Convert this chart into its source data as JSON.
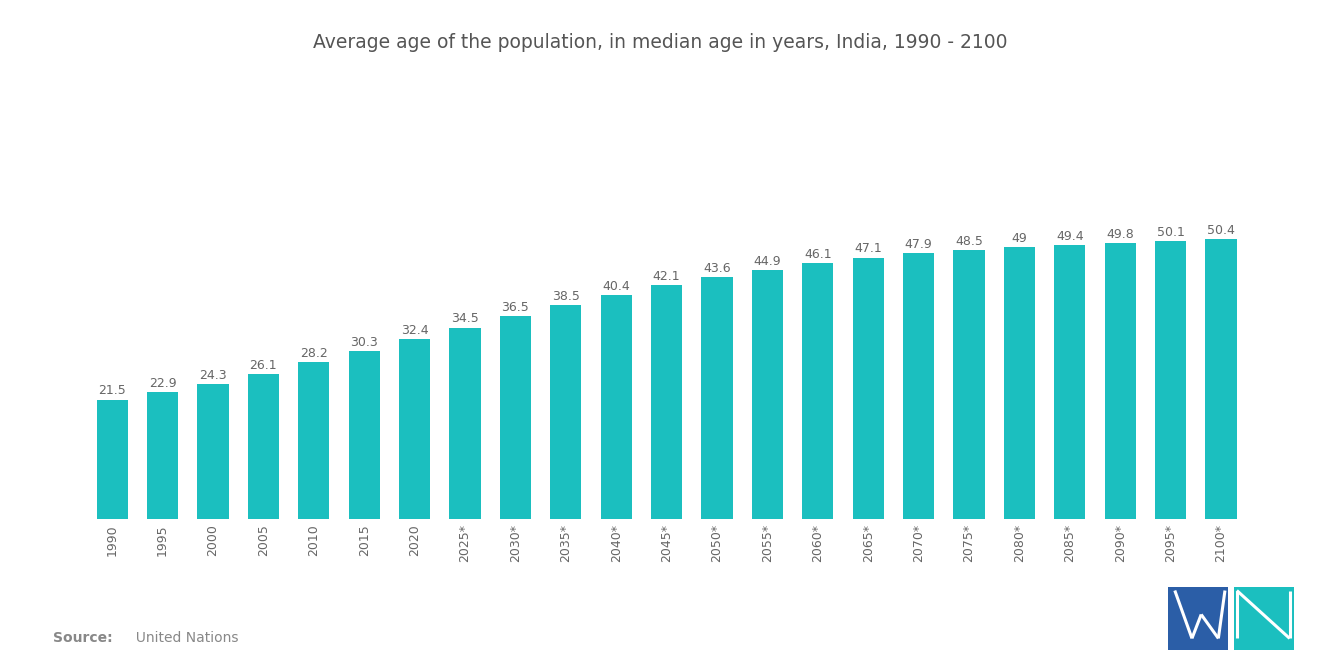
{
  "title": "Average age of the population, in median age in years, India, 1990 - 2100",
  "categories": [
    "1990",
    "1995",
    "2000",
    "2005",
    "2010",
    "2015",
    "2020",
    "2025*",
    "2030*",
    "2035*",
    "2040*",
    "2045*",
    "2050*",
    "2055*",
    "2060*",
    "2065*",
    "2070*",
    "2075*",
    "2080*",
    "2085*",
    "2090*",
    "2095*",
    "2100*"
  ],
  "values": [
    21.5,
    22.9,
    24.3,
    26.1,
    28.2,
    30.3,
    32.4,
    34.5,
    36.5,
    38.5,
    40.4,
    42.1,
    43.6,
    44.9,
    46.1,
    47.1,
    47.9,
    48.5,
    49.0,
    49.4,
    49.8,
    50.1,
    50.4
  ],
  "bar_color": "#1BBFBF",
  "background_color": "#ffffff",
  "title_color": "#555555",
  "label_color": "#666666",
  "tick_color": "#666666",
  "source_label_bold": "Source:",
  "source_label_normal": "  United Nations",
  "source_color": "#888888",
  "title_fontsize": 13.5,
  "label_fontsize": 9.0,
  "tick_fontsize": 9.0,
  "ylim_max": 60,
  "bar_width": 0.62
}
